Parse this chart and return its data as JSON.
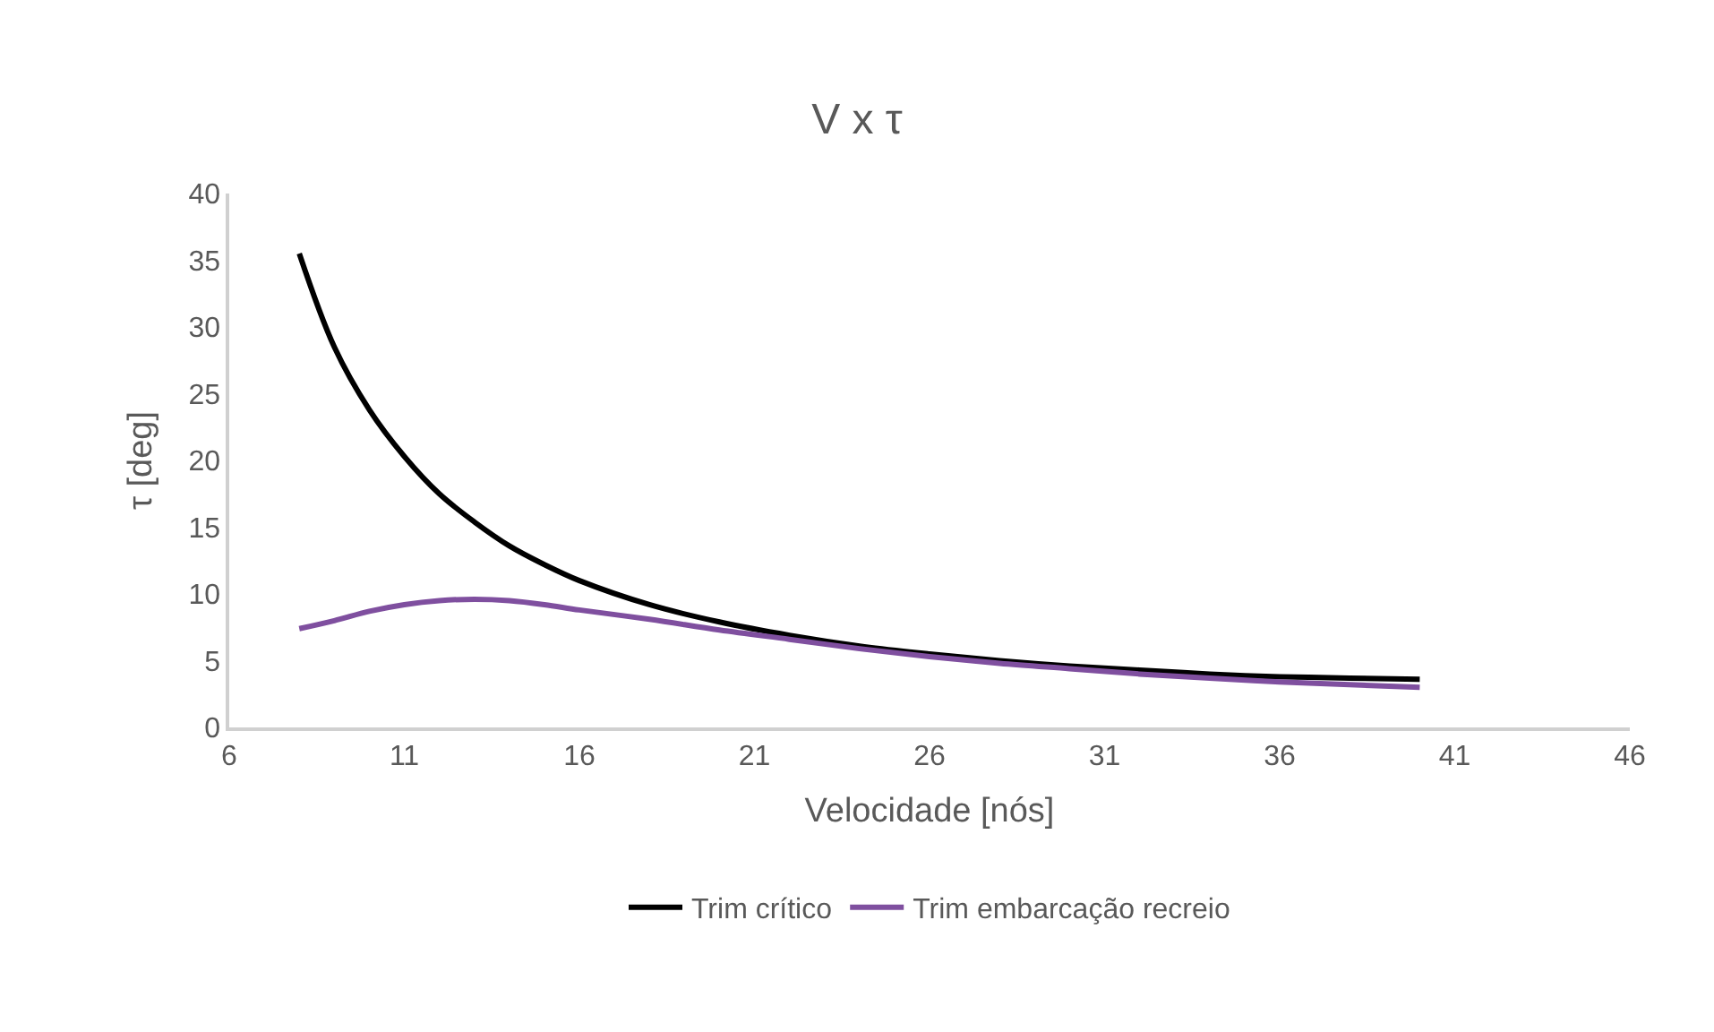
{
  "chart_data": {
    "type": "line",
    "title": "V x τ",
    "xlabel": "Velocidade [nós]",
    "ylabel": "τ [deg]",
    "xlim": [
      6,
      46
    ],
    "xticks": [
      6,
      11,
      16,
      21,
      26,
      31,
      36,
      41,
      46
    ],
    "ylim": [
      0,
      40
    ],
    "yticks": [
      0,
      5,
      10,
      15,
      20,
      25,
      30,
      35,
      40
    ],
    "grid": false,
    "legend": "bottom",
    "marker": "none",
    "line_style": "solid",
    "x": [
      8,
      9,
      10,
      11,
      12,
      13,
      14,
      15,
      16,
      18,
      20,
      22,
      24,
      26,
      28,
      30,
      32,
      34,
      36,
      38,
      40
    ],
    "series": [
      {
        "name": "Trim crítico",
        "color": "#000000",
        "values": [
          35.5,
          28.5,
          23.8,
          20.3,
          17.5,
          15.4,
          13.6,
          12.2,
          11.0,
          9.2,
          7.9,
          6.9,
          6.1,
          5.5,
          5.0,
          4.6,
          4.3,
          4.0,
          3.8,
          3.7,
          3.6
        ]
      },
      {
        "name": "Trim embarcação recreio",
        "color": "#7f4f9f",
        "values": [
          7.4,
          8.0,
          8.7,
          9.2,
          9.5,
          9.6,
          9.5,
          9.2,
          8.8,
          8.1,
          7.3,
          6.6,
          5.9,
          5.3,
          4.8,
          4.4,
          4.0,
          3.7,
          3.4,
          3.2,
          3.0
        ]
      }
    ]
  }
}
